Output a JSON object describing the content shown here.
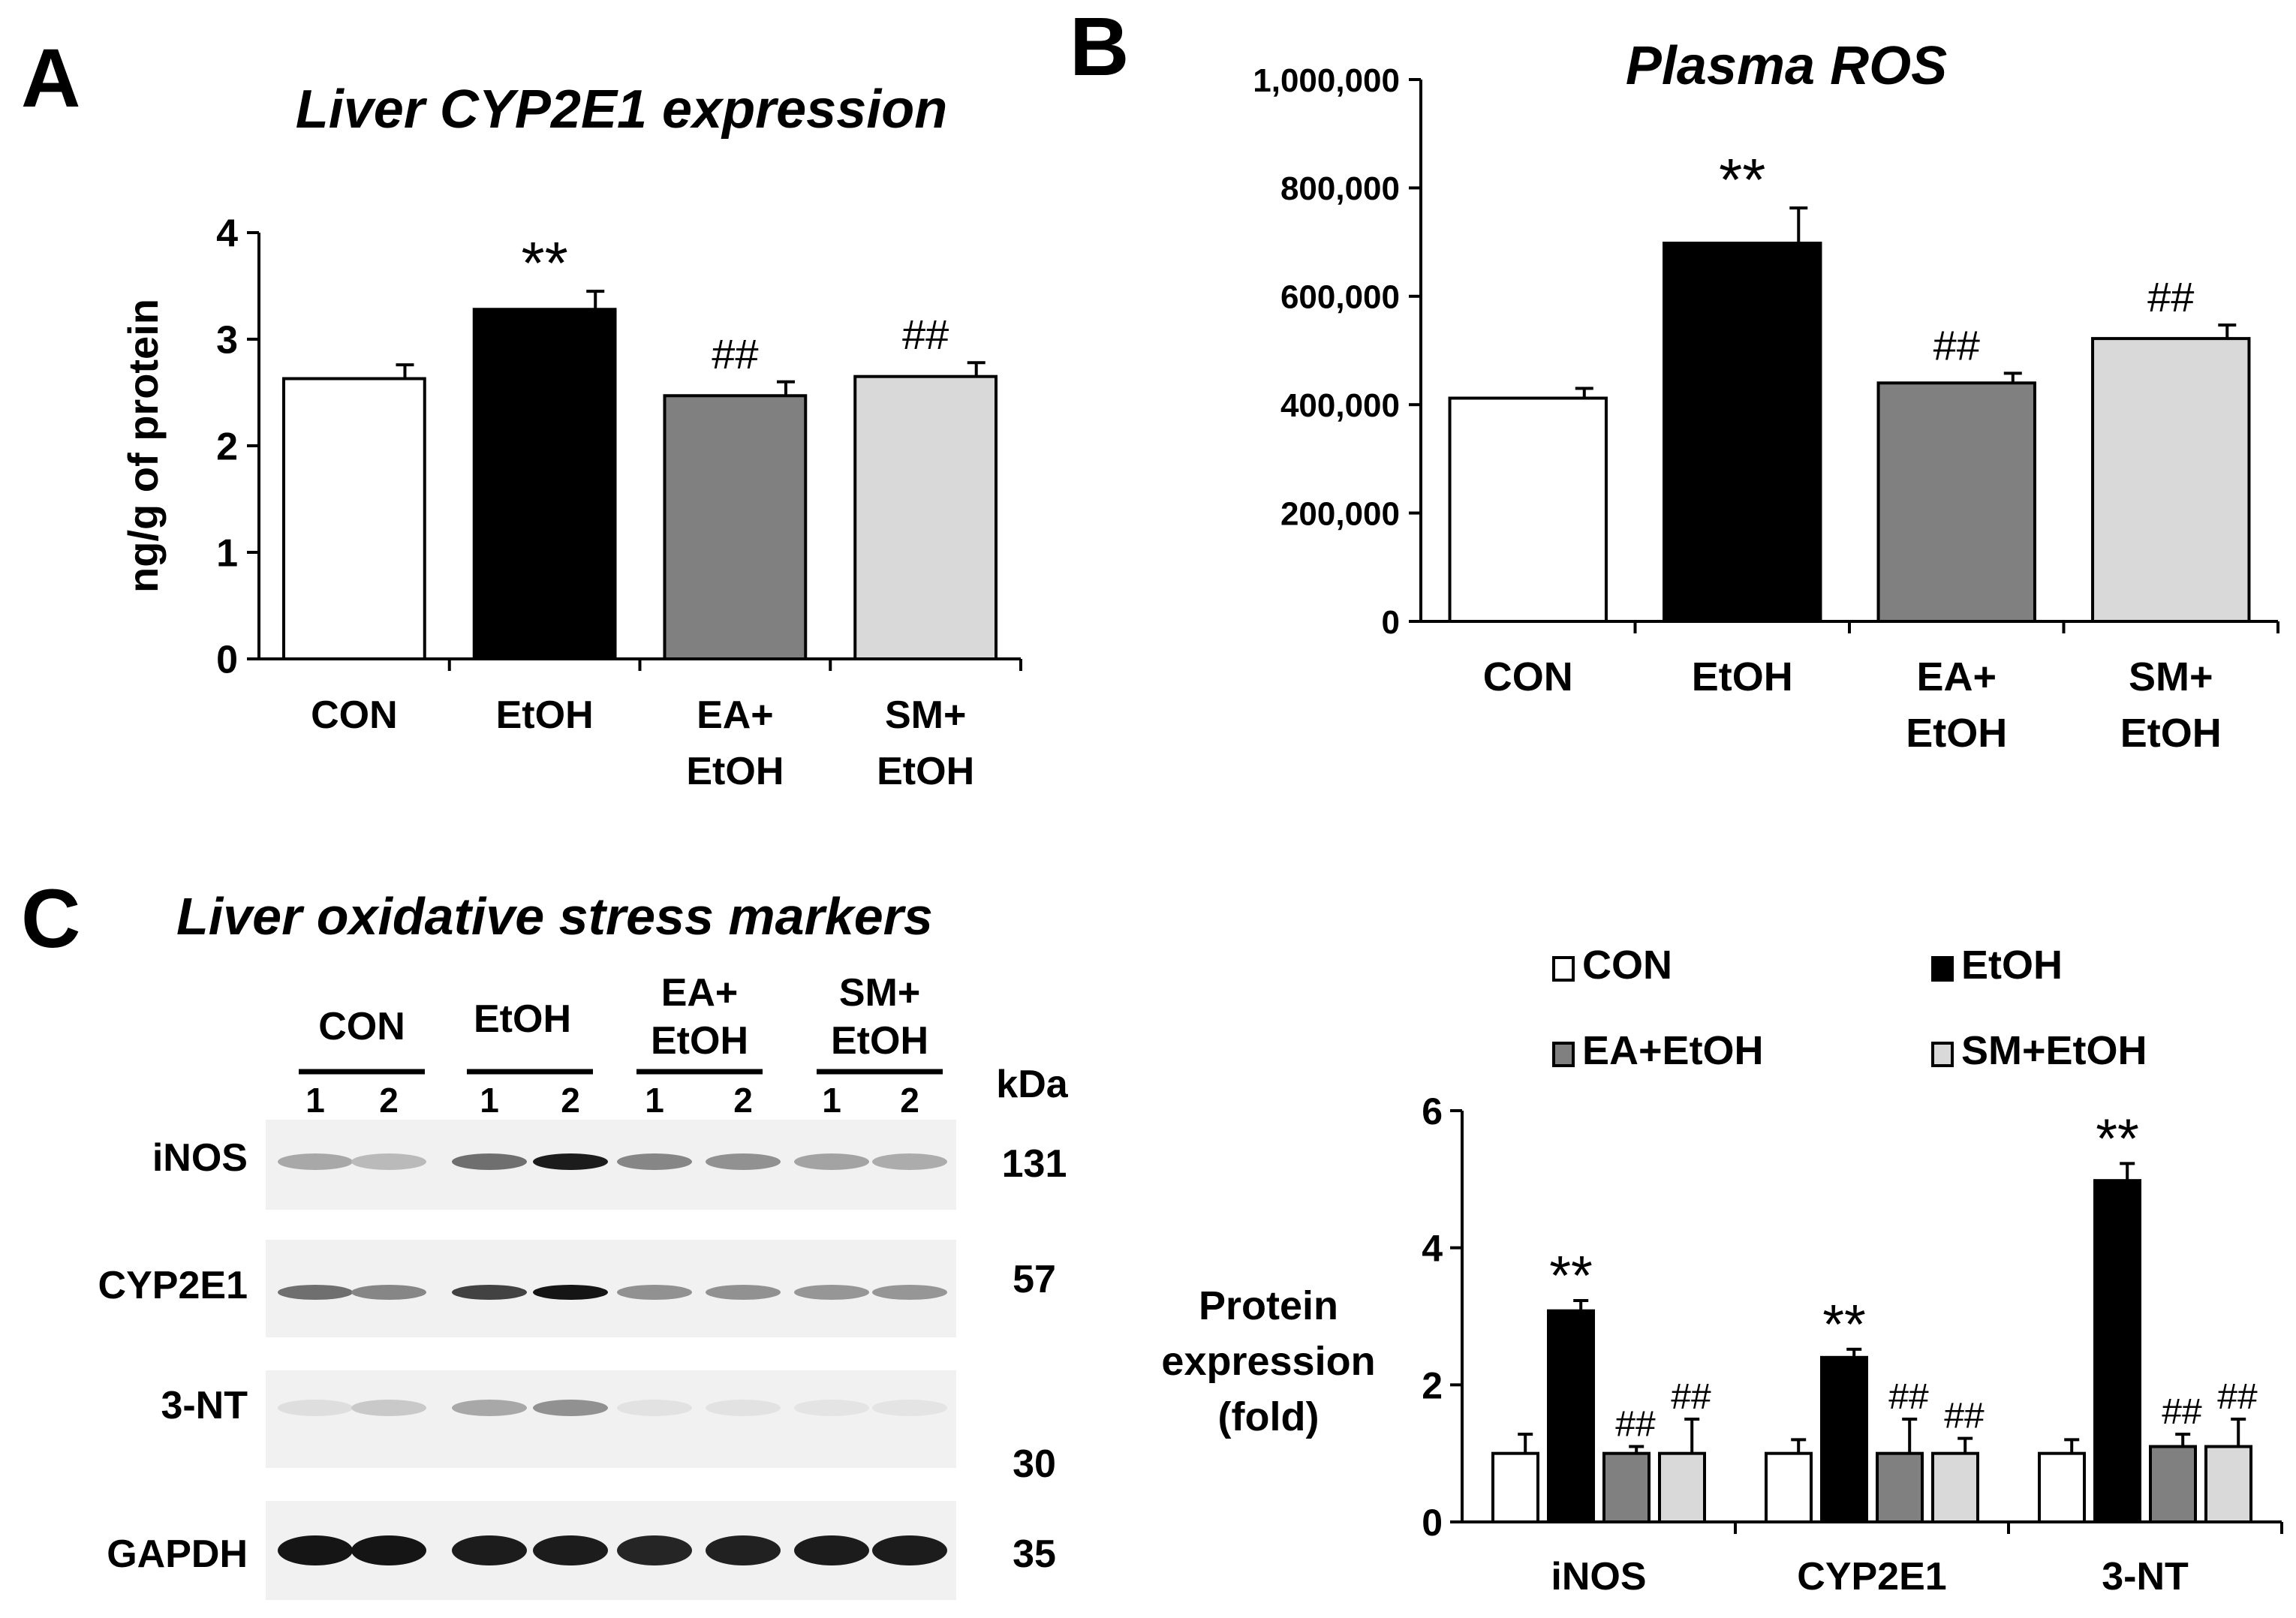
{
  "panels": {
    "a": "A",
    "b": "B",
    "c": "C"
  },
  "colors": {
    "con": "#ffffff",
    "etoh": "#000000",
    "ea": "#808080",
    "sm": "#d9d9d9",
    "axis": "#000000"
  },
  "chart_data": [
    {
      "id": "a",
      "type": "bar",
      "title": "Liver CYP2E1 expression",
      "ylabel": "ng/g of protein",
      "xlabel": "",
      "categories": [
        [
          "CON"
        ],
        [
          "EtOH"
        ],
        [
          "EA+",
          "EtOH"
        ],
        [
          "SM+",
          "EtOH"
        ]
      ],
      "values": [
        2.63,
        3.28,
        2.47,
        2.65
      ],
      "errors": [
        0.13,
        0.17,
        0.13,
        0.13
      ],
      "annotations": [
        "",
        "**",
        "##",
        "##"
      ],
      "ylim": [
        0,
        4
      ],
      "yticks": [
        0,
        1,
        2,
        3,
        4
      ],
      "ytick_labels": [
        "0",
        "1",
        "2",
        "3",
        "4"
      ],
      "colors": [
        "#ffffff",
        "#000000",
        "#808080",
        "#d9d9d9"
      ]
    },
    {
      "id": "b",
      "type": "bar",
      "title": "Plasma ROS",
      "ylabel": "",
      "xlabel": "",
      "categories": [
        [
          "CON"
        ],
        [
          "EtOH"
        ],
        [
          "EA+",
          "EtOH"
        ],
        [
          "SM+",
          "EtOH"
        ]
      ],
      "values": [
        412000,
        698000,
        440000,
        522000
      ],
      "errors": [
        18000,
        65000,
        18000,
        25000
      ],
      "annotations": [
        "",
        "**",
        "##",
        "##"
      ],
      "ylim": [
        0,
        1000000
      ],
      "yticks": [
        0,
        200000,
        400000,
        600000,
        800000,
        1000000
      ],
      "ytick_labels": [
        "0",
        "200,000",
        "400,000",
        "600,000",
        "800,000",
        "1,000,000"
      ],
      "colors": [
        "#ffffff",
        "#000000",
        "#808080",
        "#d9d9d9"
      ]
    },
    {
      "id": "c",
      "type": "bar",
      "title": "",
      "ylabel": [
        "Protein",
        "expression",
        "(fold)"
      ],
      "xlabel": "",
      "categories": [
        "iNOS",
        "CYP2E1",
        "3-NT"
      ],
      "series": [
        {
          "name": "CON",
          "values": [
            1.0,
            1.0,
            1.0
          ],
          "errors": [
            0.28,
            0.2,
            0.2
          ],
          "annotations": [
            "",
            "",
            ""
          ],
          "color": "#ffffff"
        },
        {
          "name": "EtOH",
          "values": [
            3.08,
            2.4,
            4.98
          ],
          "errors": [
            0.15,
            0.12,
            0.25
          ],
          "annotations": [
            "**",
            "**",
            "**"
          ],
          "color": "#000000"
        },
        {
          "name": "EA+EtOH",
          "values": [
            1.0,
            1.0,
            1.1
          ],
          "errors": [
            0.1,
            0.5,
            0.18
          ],
          "annotations": [
            "##",
            "##",
            "##"
          ],
          "color": "#808080"
        },
        {
          "name": "SM+EtOH",
          "values": [
            1.0,
            1.0,
            1.1
          ],
          "errors": [
            0.5,
            0.22,
            0.4
          ],
          "annotations": [
            "##",
            "##",
            "##"
          ],
          "color": "#d9d9d9"
        }
      ],
      "ylim": [
        0,
        6
      ],
      "yticks": [
        0,
        2,
        4,
        6
      ],
      "ytick_labels": [
        "0",
        "2",
        "4",
        "6"
      ],
      "legend": "top"
    }
  ],
  "blot": {
    "title": "Liver oxidative stress markers",
    "groups": [
      {
        "label": [
          "CON"
        ],
        "lanes": [
          "1",
          "2"
        ]
      },
      {
        "label": [
          "EtOH"
        ],
        "lanes": [
          "1",
          "2"
        ]
      },
      {
        "label": [
          "EA+",
          "EtOH"
        ],
        "lanes": [
          "1",
          "2"
        ]
      },
      {
        "label": [
          "SM+",
          "EtOH"
        ],
        "lanes": [
          "1",
          "2"
        ]
      }
    ],
    "kda_header": "kDa",
    "rows": [
      {
        "name": "iNOS",
        "kda": "131",
        "intensity": [
          0.3,
          0.22,
          0.55,
          0.92,
          0.45,
          0.4,
          0.32,
          0.28
        ]
      },
      {
        "name": "CYP2E1",
        "kda": "57",
        "intensity": [
          0.55,
          0.45,
          0.75,
          0.95,
          0.4,
          0.4,
          0.38,
          0.38
        ]
      },
      {
        "name": "3-NT",
        "kda": "30",
        "intensity": [
          0.06,
          0.15,
          0.3,
          0.4,
          0.04,
          0.04,
          0.03,
          0.03
        ]
      },
      {
        "name": "GAPDH",
        "kda": "35",
        "intensity": [
          0.95,
          0.95,
          0.92,
          0.92,
          0.88,
          0.9,
          0.92,
          0.92
        ]
      }
    ]
  }
}
